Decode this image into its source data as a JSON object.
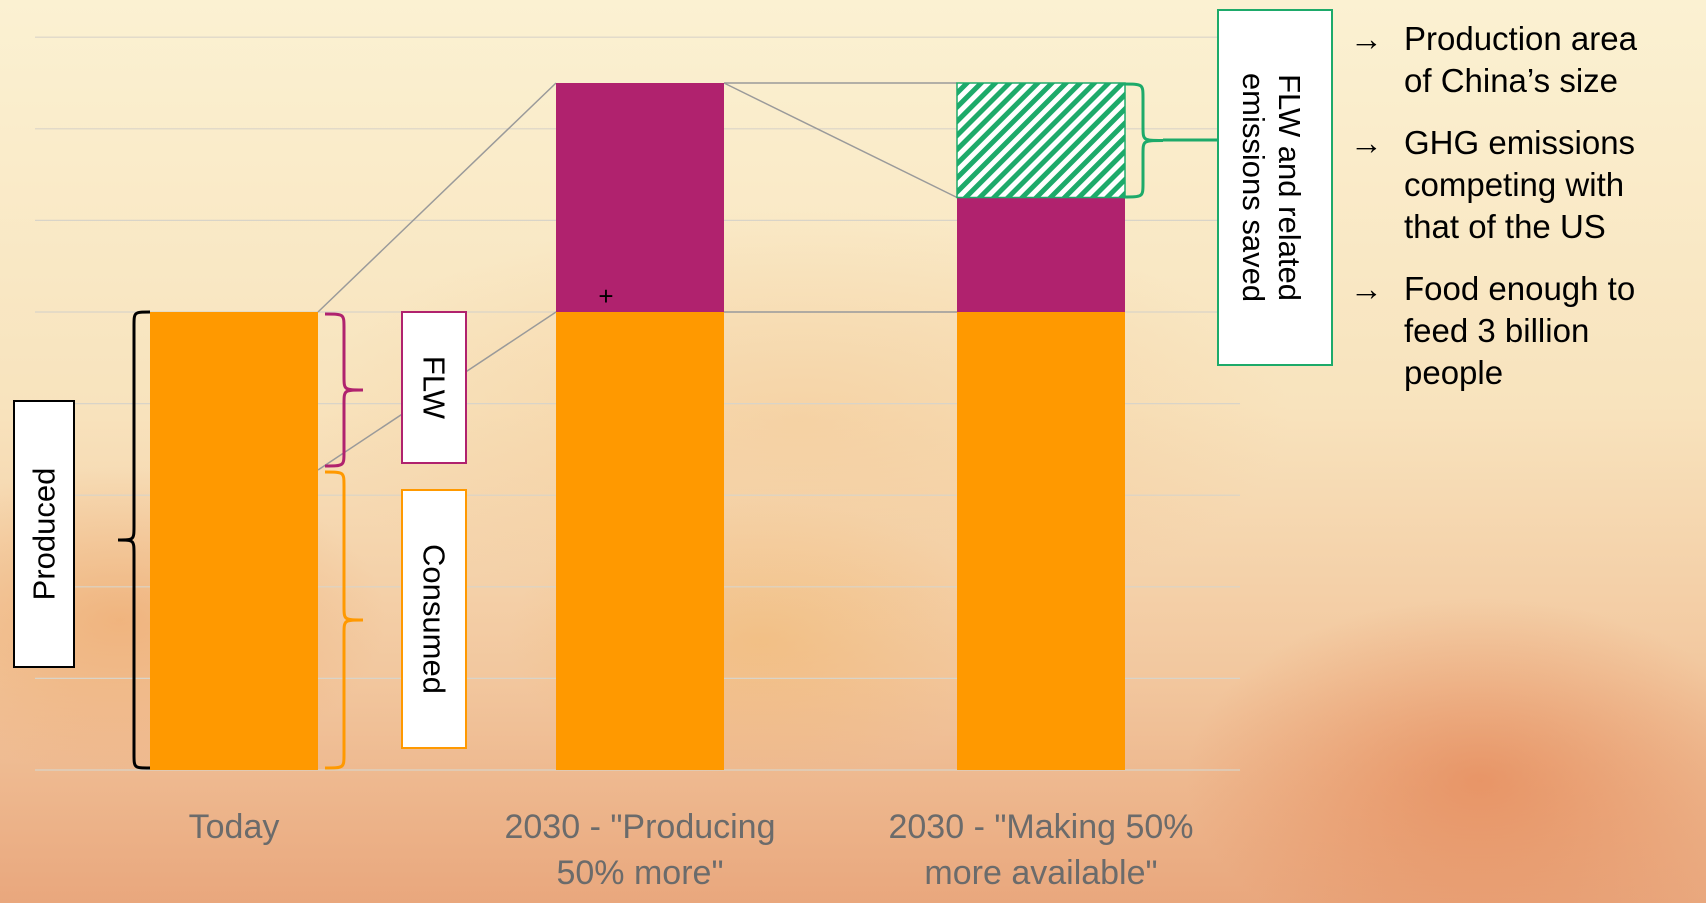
{
  "chart_data": {
    "type": "bar",
    "stacked": true,
    "categories": [
      "Today",
      "2030 - \"Producing 50% more\"",
      "2030 - \"Making 50% more available\""
    ],
    "category_lines": [
      [
        "Today"
      ],
      [
        "2030 - \"Producing",
        "50% more\""
      ],
      [
        "2030 - \"Making 50%",
        "more available\""
      ]
    ],
    "series": [
      {
        "name": "Consumed",
        "color": "#FF9900",
        "values": [
          100,
          100,
          100
        ]
      },
      {
        "name": "FLW",
        "color": "#B0226E",
        "values": [
          0,
          50,
          25
        ]
      },
      {
        "name": "FLW and related emissions saved",
        "color": "#1DAA6A",
        "pattern": "diagonal-hatch",
        "values": [
          0,
          0,
          25
        ]
      }
    ],
    "ylim": [
      0,
      160
    ],
    "grid": true,
    "annotations": {
      "produced": "Produced",
      "flw": "FLW",
      "consumed": "Consumed",
      "saved": "FLW and related emissions saved",
      "saved_lines": [
        "FLW and related",
        "emissions saved"
      ],
      "plus": "+"
    }
  },
  "bullets": [
    {
      "arrow": "→",
      "lines": [
        "Production area",
        "of China’s size"
      ]
    },
    {
      "arrow": "→",
      "lines": [
        "GHG emissions",
        "competing with",
        "that of the US"
      ]
    },
    {
      "arrow": "→",
      "lines": [
        "Food enough to",
        "feed 3 billion",
        "people"
      ]
    }
  ],
  "colors": {
    "consumed": "#FF9900",
    "flw": "#B0226E",
    "saved": "#1DAA6A",
    "bracket_black": "#000000",
    "bracket_flw": "#B0226E",
    "bracket_consumed": "#FF9900",
    "bracket_saved": "#1DAA6A",
    "connector": "#9a9a9a"
  }
}
